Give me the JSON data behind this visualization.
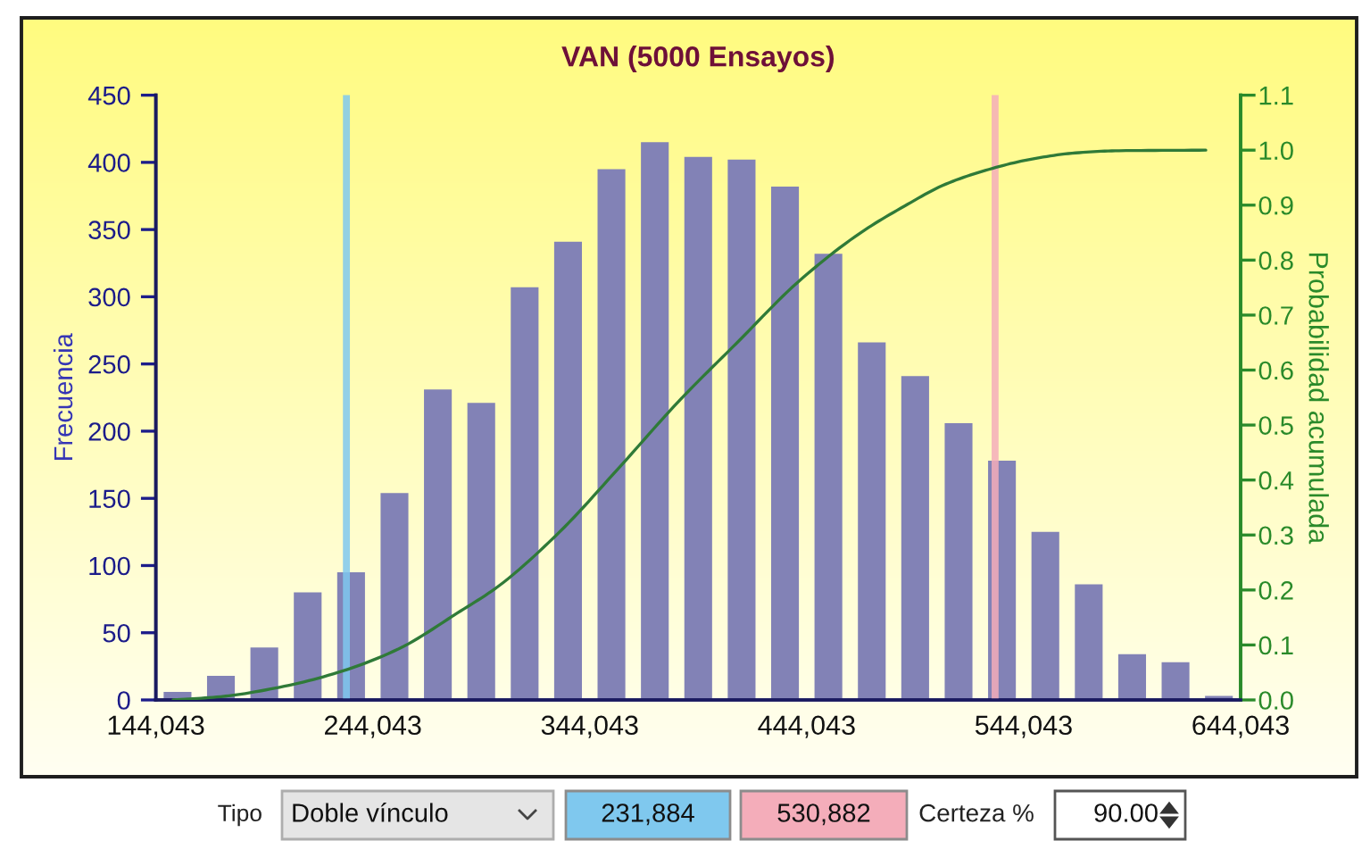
{
  "chart_data": {
    "type": "histogram",
    "title": "VAN (5000 Ensayos)",
    "ylabel": "Frecuencia",
    "y2label": "Probabilidad acumulada",
    "bins": [
      144043,
      164043,
      184043,
      204043,
      224043,
      244043,
      264043,
      284043,
      304043,
      324043,
      344043,
      364043,
      384043,
      404043,
      424043,
      444043,
      464043,
      484043,
      504043,
      524043,
      544043,
      564043,
      584043,
      604043,
      624043,
      644043
    ],
    "series": [
      {
        "color": "#8282b6",
        "values": [
          6,
          18,
          39,
          80,
          95,
          154,
          231,
          221,
          307,
          341,
          395,
          415,
          404,
          402,
          382,
          332,
          266,
          241,
          206,
          178,
          125,
          86,
          34,
          28,
          3
        ]
      },
      {
        "type": "line",
        "axis": "y2",
        "color": "#2f7a38",
        "x": [
          152000,
          174000,
          201000,
          228000,
          256000,
          283000,
          302000,
          330000,
          357000,
          385000,
          412000,
          440000,
          469000,
          489000,
          508000,
          528000,
          548000,
          568000,
          588000,
          628000
        ],
        "values": [
          0.0,
          0.006,
          0.023,
          0.05,
          0.093,
          0.158,
          0.207,
          0.305,
          0.42,
          0.543,
          0.65,
          0.76,
          0.85,
          0.898,
          0.938,
          0.965,
          0.984,
          0.995,
          0.999,
          1.0
        ]
      }
    ],
    "xlim": [
      144043,
      644043
    ],
    "xticks": [
      {
        "value": 144043,
        "label": "144,043"
      },
      {
        "value": 244043,
        "label": "244,043"
      },
      {
        "value": 344043,
        "label": "344,043"
      },
      {
        "value": 444043,
        "label": "444,043"
      },
      {
        "value": 544043,
        "label": "544,043"
      },
      {
        "value": 644043,
        "label": "644,043"
      }
    ],
    "ylim": [
      0,
      450
    ],
    "yticks": [
      0,
      50,
      100,
      150,
      200,
      250,
      300,
      350,
      400,
      450
    ],
    "y2lim": [
      0,
      1.1
    ],
    "y2ticks": [
      {
        "value": 0,
        "label": "0.0"
      },
      0.1,
      0.2,
      0.3,
      0.4,
      0.5,
      0.6,
      0.7,
      0.8,
      0.9,
      {
        "value": 1,
        "label": "1.0"
      },
      1.1
    ],
    "ref_lines": [
      {
        "axis": "x",
        "value": 231884,
        "color": "#7fc8ee"
      },
      {
        "axis": "x",
        "value": 530882,
        "color": "#f4adba"
      }
    ],
    "annotations": [
      "Tipo",
      "Doble vínculo",
      "231,884",
      "530,882",
      "Certeza %",
      "90.00"
    ]
  }
}
